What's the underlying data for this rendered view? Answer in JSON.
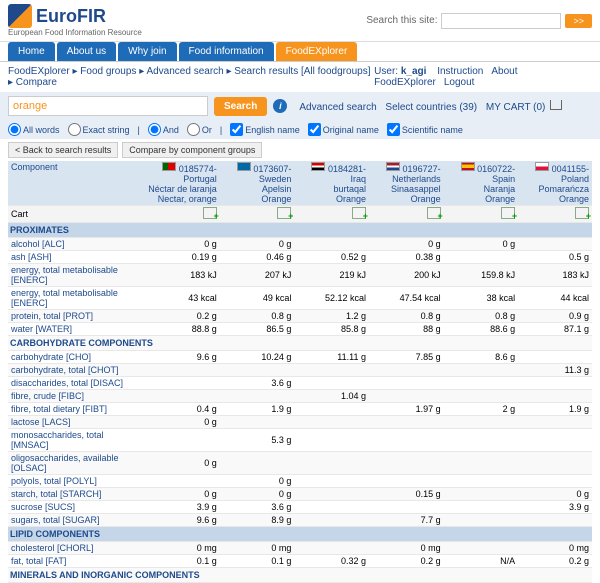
{
  "header": {
    "logo_text": "EuroFIR",
    "logo_sub": "European Food Information Resource",
    "search_label": "Search this site:",
    "search_go": ">>"
  },
  "nav": [
    "Home",
    "About us",
    "Why join",
    "Food information",
    "FoodEXplorer"
  ],
  "breadcrumb": "FoodEXplorer ▸ Food groups ▸ Advanced search ▸ Search results [All foodgroups] ▸ Compare",
  "user": {
    "label": "User:",
    "name": "k_agi",
    "links": [
      "Instruction",
      "About FoodEXplorer",
      "Logout"
    ]
  },
  "search": {
    "value": "orange",
    "button": "Search",
    "adv": "Advanced search",
    "countries": "Select countries (39)",
    "cart": "MY CART (0)"
  },
  "opts": {
    "all_words": "All words",
    "exact": "Exact string",
    "and": "And",
    "or": "Or",
    "en": "English name",
    "orig": "Original name",
    "sci": "Scientific name"
  },
  "toolbar": {
    "back": "< Back to search results",
    "compare": "Compare by component groups"
  },
  "columns": [
    {
      "flag": "flag-pt",
      "code": "0185774-",
      "country": "Portugal",
      "local": "Néctar de laranja",
      "en": "Nectar, orange"
    },
    {
      "flag": "flag-se",
      "code": "0173607-",
      "country": "Sweden",
      "local": "Apelsin",
      "en": "Orange"
    },
    {
      "flag": "flag-iq",
      "code": "0184281-",
      "country": "Iraq",
      "local": "burtaqal",
      "en": "Orange"
    },
    {
      "flag": "flag-nl",
      "code": "0196727-",
      "country": "Netherlands",
      "local": "Sinaasappel",
      "en": "Orange"
    },
    {
      "flag": "flag-es",
      "code": "0160722-",
      "country": "Spain",
      "local": "Naranja",
      "en": "Orange"
    },
    {
      "flag": "flag-pl",
      "code": "0041155-",
      "country": "Poland",
      "local": "Pomarańcza",
      "en": "Orange"
    }
  ],
  "header_labels": {
    "component": "Component",
    "cart": "Cart"
  },
  "sections": [
    {
      "title": "PROXIMATES",
      "rows": [
        {
          "n": "alcohol [ALC]",
          "v": [
            "0 g",
            "0 g",
            "",
            "0 g",
            "0 g",
            ""
          ]
        },
        {
          "n": "ash [ASH]",
          "v": [
            "0.19 g",
            "0.46 g",
            "0.52 g",
            "0.38 g",
            "",
            "0.5 g"
          ]
        },
        {
          "n": "energy, total metabolisable [ENERC]",
          "v": [
            "183 kJ",
            "207 kJ",
            "219 kJ",
            "200 kJ",
            "159.8 kJ",
            "183 kJ"
          ]
        },
        {
          "n": "energy, total metabolisable [ENERC]",
          "v": [
            "43 kcal",
            "49 kcal",
            "52.12 kcal",
            "47.54 kcal",
            "38 kcal",
            "44 kcal"
          ]
        },
        {
          "n": "protein, total [PROT]",
          "v": [
            "0.2 g",
            "0.8 g",
            "1.2 g",
            "0.8 g",
            "0.8 g",
            "0.9 g"
          ]
        },
        {
          "n": "water [WATER]",
          "v": [
            "88.8 g",
            "86.5 g",
            "85.8 g",
            "88 g",
            "88.6 g",
            "87.1 g"
          ]
        }
      ]
    },
    {
      "title": "CARBOHYDRATE COMPONENTS",
      "rows": [
        {
          "n": "carbohydrate [CHO]",
          "v": [
            "9.6 g",
            "10.24 g",
            "11.11 g",
            "7.85 g",
            "8.6 g",
            ""
          ]
        },
        {
          "n": "carbohydrate, total [CHOT]",
          "v": [
            "",
            "",
            "",
            "",
            "",
            "11.3 g"
          ]
        },
        {
          "n": "disaccharides, total [DISAC]",
          "v": [
            "",
            "3.6 g",
            "",
            "",
            "",
            ""
          ]
        },
        {
          "n": "fibre, crude [FIBC]",
          "v": [
            "",
            "",
            "1.04 g",
            "",
            "",
            ""
          ]
        },
        {
          "n": "fibre, total dietary [FIBT]",
          "v": [
            "0.4 g",
            "1.9 g",
            "",
            "1.97 g",
            "2 g",
            "1.9 g"
          ]
        },
        {
          "n": "lactose [LACS]",
          "v": [
            "0 g",
            "",
            "",
            "",
            "",
            ""
          ]
        },
        {
          "n": "monosaccharides, total [MNSAC]",
          "v": [
            "",
            "5.3 g",
            "",
            "",
            "",
            ""
          ]
        },
        {
          "n": "oligosaccharides, available [OLSAC]",
          "v": [
            "0 g",
            "",
            "",
            "",
            "",
            ""
          ]
        },
        {
          "n": "polyols, total [POLYL]",
          "v": [
            "",
            "0 g",
            "",
            "",
            "",
            ""
          ]
        },
        {
          "n": "starch, total [STARCH]",
          "v": [
            "0 g",
            "0 g",
            "",
            "0.15 g",
            "",
            "0 g"
          ]
        },
        {
          "n": "sucrose [SUCS]",
          "v": [
            "3.9 g",
            "3.6 g",
            "",
            "",
            "",
            "3.9 g"
          ]
        },
        {
          "n": "sugars, total [SUGAR]",
          "v": [
            "9.6 g",
            "8.9 g",
            "",
            "7.7 g",
            "",
            ""
          ]
        }
      ]
    },
    {
      "title": "LIPID COMPONENTS",
      "rows": [
        {
          "n": "cholesterol [CHORL]",
          "v": [
            "0 mg",
            "0 mg",
            "",
            "0 mg",
            "",
            "0 mg"
          ]
        },
        {
          "n": "fat, total [FAT]",
          "v": [
            "0.1 g",
            "0.1 g",
            "0.32 g",
            "0.2 g",
            "N/A",
            "0.2 g"
          ]
        }
      ]
    },
    {
      "title": "MINERALS AND INORGANIC COMPONENTS",
      "rows": []
    }
  ]
}
